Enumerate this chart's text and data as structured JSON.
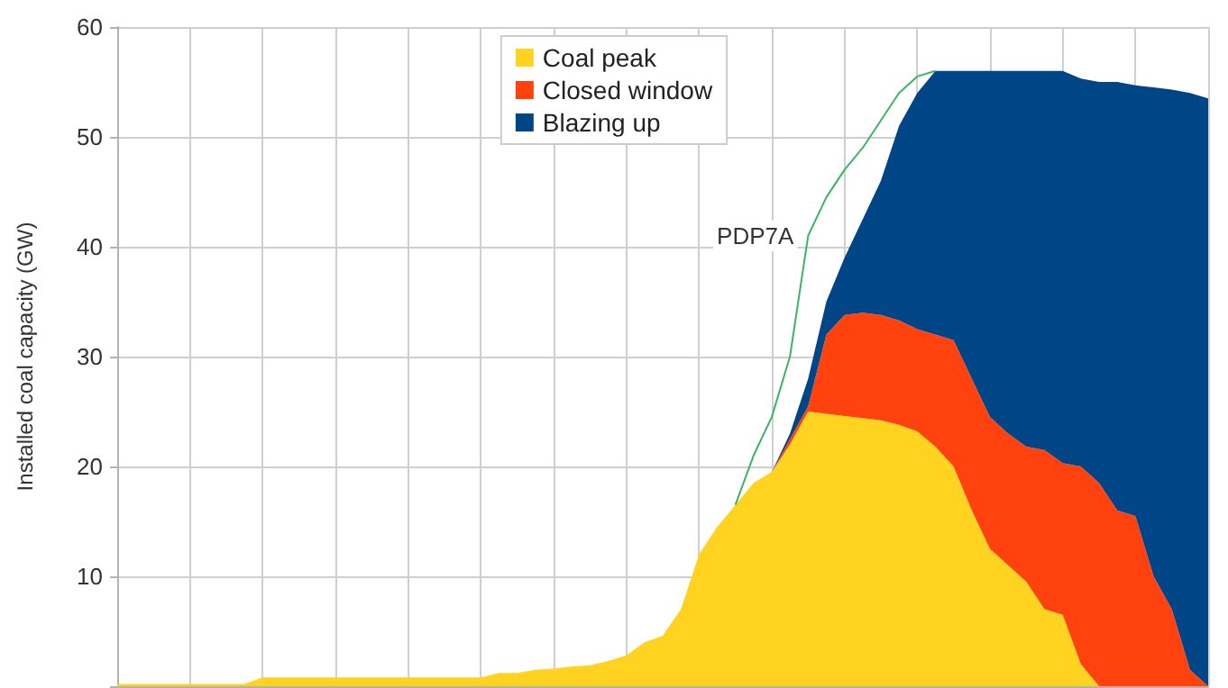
{
  "chart_data": {
    "type": "area",
    "stacked": true,
    "ylabel": "Installed coal capacity (GW)",
    "ylim": [
      0,
      60
    ],
    "yticks": [
      {
        "value": 0,
        "label": null
      },
      10,
      20,
      30,
      40,
      50,
      60
    ],
    "grid": true,
    "legend": "top",
    "tick_labels": "y",
    "marker": "none",
    "categories": [
      null,
      null,
      null,
      null,
      null,
      null,
      null,
      null,
      null,
      null,
      null,
      null,
      null,
      null,
      null,
      null,
      null,
      null,
      null,
      null,
      null,
      null,
      null,
      null,
      null,
      null,
      null,
      null,
      null,
      null,
      null,
      null,
      null,
      null,
      null,
      null,
      null,
      null,
      null,
      null,
      null,
      null,
      null,
      null,
      null,
      null,
      null,
      null,
      null,
      null,
      null,
      null,
      null,
      null,
      null,
      null,
      null,
      null,
      null,
      null,
      null
    ],
    "series": [
      {
        "name": "Coal peak",
        "color": "#ffd320",
        "values": [
          0.2,
          0.2,
          0.2,
          0.2,
          0.2,
          0.2,
          0.2,
          0.2,
          0.8,
          0.8,
          0.8,
          0.8,
          0.8,
          0.8,
          0.8,
          0.8,
          0.8,
          0.8,
          0.8,
          0.8,
          0.8,
          1.2,
          1.2,
          1.5,
          1.6,
          1.8,
          1.9,
          2.3,
          2.8,
          4,
          4.6,
          7,
          12,
          14.5,
          16.5,
          18.5,
          19.5,
          22,
          25,
          24.8,
          24.6,
          24.4,
          24.2,
          23.8,
          23.2,
          21.8,
          20,
          16,
          12.5,
          11,
          9.5,
          7,
          6.5,
          2,
          0,
          0,
          0,
          0,
          0,
          0,
          0
        ]
      },
      {
        "name": "Closed window",
        "color": "#ff420e",
        "values": [
          0,
          0,
          0,
          0,
          0,
          0,
          0,
          0,
          0,
          0,
          0,
          0,
          0,
          0,
          0,
          0,
          0,
          0,
          0,
          0,
          0,
          0,
          0,
          0,
          0,
          0,
          0,
          0,
          0,
          0,
          0,
          0,
          0,
          0,
          0,
          0,
          0,
          0.5,
          0.5,
          7.2,
          9.2,
          9.6,
          9.6,
          9.5,
          9.3,
          10.2,
          11.5,
          12,
          12,
          12,
          12.3,
          14.5,
          13.8,
          18,
          18.5,
          16,
          15.5,
          10,
          7,
          1.5,
          0
        ]
      },
      {
        "name": "Blazing up",
        "color": "#004586",
        "values": [
          0,
          0,
          0,
          0,
          0,
          0,
          0,
          0,
          0,
          0,
          0,
          0,
          0,
          0,
          0,
          0,
          0,
          0,
          0,
          0,
          0,
          0,
          0,
          0,
          0,
          0,
          0,
          0,
          0,
          0,
          0,
          0,
          0,
          0,
          0,
          0,
          0,
          0.5,
          2.5,
          3,
          5.2,
          8.5,
          12.2,
          17.7,
          21.5,
          24,
          24.5,
          28,
          31.5,
          33,
          34.2,
          34.5,
          35.7,
          35.3,
          36.5,
          39,
          39.2,
          44.5,
          47.3,
          52.5,
          53.5
        ]
      },
      {
        "name": "PDP7A",
        "type": "line",
        "color": "#3cb464",
        "values": [
          null,
          null,
          null,
          null,
          null,
          null,
          null,
          null,
          null,
          null,
          null,
          null,
          null,
          null,
          null,
          null,
          null,
          null,
          null,
          null,
          null,
          null,
          null,
          null,
          null,
          null,
          null,
          null,
          null,
          null,
          null,
          null,
          null,
          null,
          16.5,
          21,
          24.5,
          30,
          41,
          44.5,
          47,
          49,
          51.5,
          54,
          55.5,
          56,
          null,
          null,
          null,
          null,
          null,
          null,
          null,
          null,
          null,
          null,
          null,
          null,
          null,
          null,
          null
        ]
      }
    ]
  }
}
